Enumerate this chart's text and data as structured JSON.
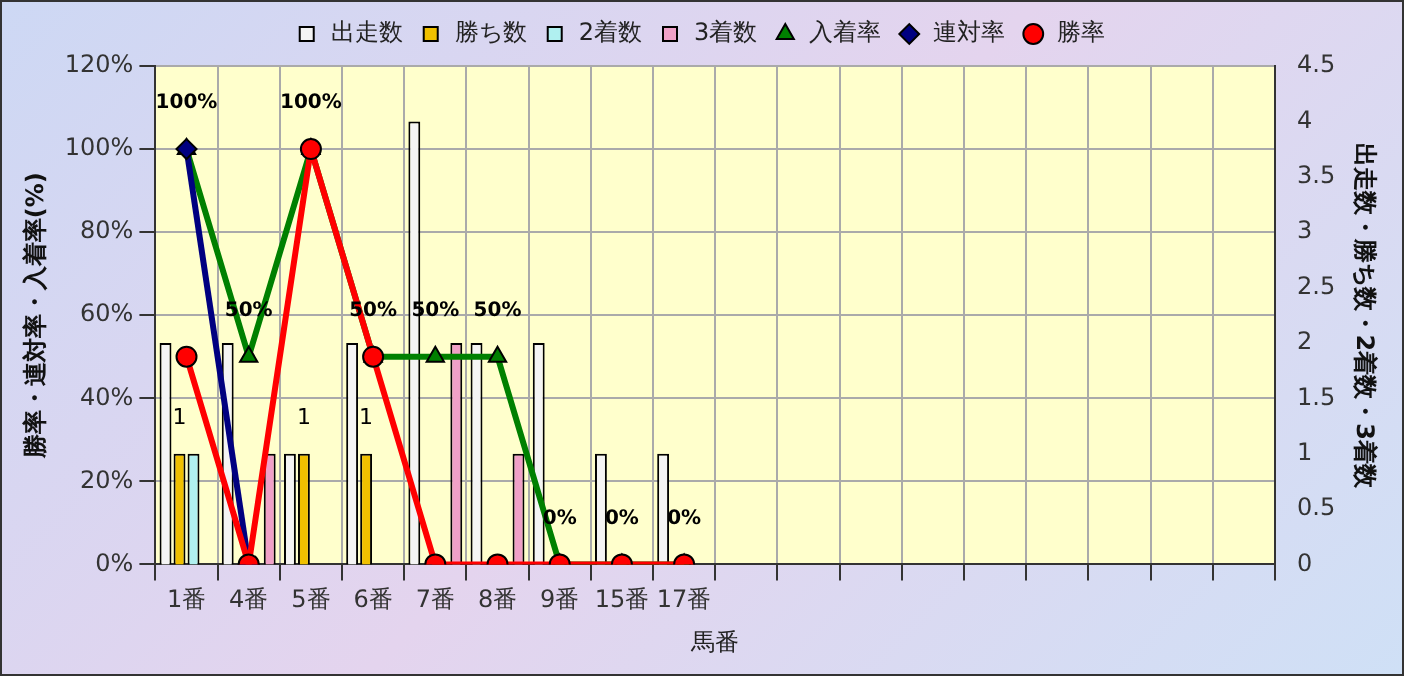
{
  "chart_data": {
    "type": "bar",
    "xlabel": "馬番",
    "ylabel": "勝率・連対率・入着率(%)",
    "y2label": "出走数・勝ち数・2着数・3着数",
    "categories": [
      "1番",
      "4番",
      "5番",
      "6番",
      "7番",
      "8番",
      "9番",
      "15番",
      "17番",
      null,
      null,
      null,
      null,
      null,
      null,
      null,
      null,
      null
    ],
    "series": [
      {
        "name": "出走数",
        "axis": "y2",
        "color": "#f4f4f4",
        "values": [
          2,
          2,
          1,
          2,
          4,
          2,
          2,
          1,
          1,
          null,
          null,
          null,
          null,
          null,
          null,
          null,
          null,
          null
        ]
      },
      {
        "name": "勝ち数",
        "axis": "y2",
        "color": "#f0c000",
        "values": [
          1,
          0,
          1,
          1,
          0,
          0,
          0,
          0,
          0,
          null,
          null,
          null,
          null,
          null,
          null,
          null,
          null,
          null
        ],
        "value_labels": [
          "1",
          null,
          "1",
          "1",
          null,
          null,
          null,
          null,
          null,
          null,
          null,
          null,
          null,
          null,
          null,
          null,
          null,
          null
        ]
      },
      {
        "name": "2着数",
        "axis": "y2",
        "color": "#b0f0f0",
        "values": [
          1,
          0,
          0,
          0,
          0,
          0,
          0,
          0,
          0,
          null,
          null,
          null,
          null,
          null,
          null,
          null,
          null,
          null
        ]
      },
      {
        "name": "3着数",
        "axis": "y2",
        "color": "#f0a0c8",
        "values": [
          0,
          1,
          0,
          0,
          2,
          1,
          0,
          0,
          0,
          null,
          null,
          null,
          null,
          null,
          null,
          null,
          null,
          null
        ]
      },
      {
        "name": "入着率",
        "type": "line",
        "color": "#008000",
        "marker": "triangle",
        "values": [
          100,
          50,
          100,
          50,
          50,
          50,
          0,
          0,
          0,
          null,
          null,
          null,
          null,
          null,
          null,
          null,
          null,
          null
        ],
        "value_labels": [
          "100%",
          "50%",
          "100%",
          "50%",
          "50%",
          "50%",
          "0%",
          "0%",
          "0%",
          null,
          null,
          null,
          null,
          null,
          null,
          null,
          null,
          null
        ]
      },
      {
        "name": "連対率",
        "type": "line",
        "color": "#000080",
        "marker": "diamond",
        "values": [
          100,
          0,
          null,
          null,
          null,
          null,
          null,
          null,
          null,
          null,
          null,
          null,
          null,
          null,
          null,
          null,
          null,
          null
        ]
      },
      {
        "name": "勝率",
        "type": "line",
        "color": "#ff0000",
        "marker": "circle",
        "values": [
          50,
          0,
          100,
          50,
          0,
          0,
          0,
          0,
          0,
          null,
          null,
          null,
          null,
          null,
          null,
          null,
          null,
          null
        ]
      }
    ],
    "ylim": [
      0,
      120
    ],
    "yticks": [
      {
        "value": 0,
        "label": "0%"
      },
      {
        "value": 20,
        "label": "20%"
      },
      {
        "value": 40,
        "label": "40%"
      },
      {
        "value": 60,
        "label": "60%"
      },
      {
        "value": 80,
        "label": "80%"
      },
      {
        "value": 100,
        "label": "100%"
      },
      {
        "value": 120,
        "label": "120%"
      }
    ],
    "y2lim": [
      0,
      4.5
    ],
    "y2ticks": [
      0,
      0.5,
      1,
      1.5,
      2,
      2.5,
      3,
      3.5,
      4,
      4.5
    ],
    "grid": true,
    "legend": "top"
  }
}
